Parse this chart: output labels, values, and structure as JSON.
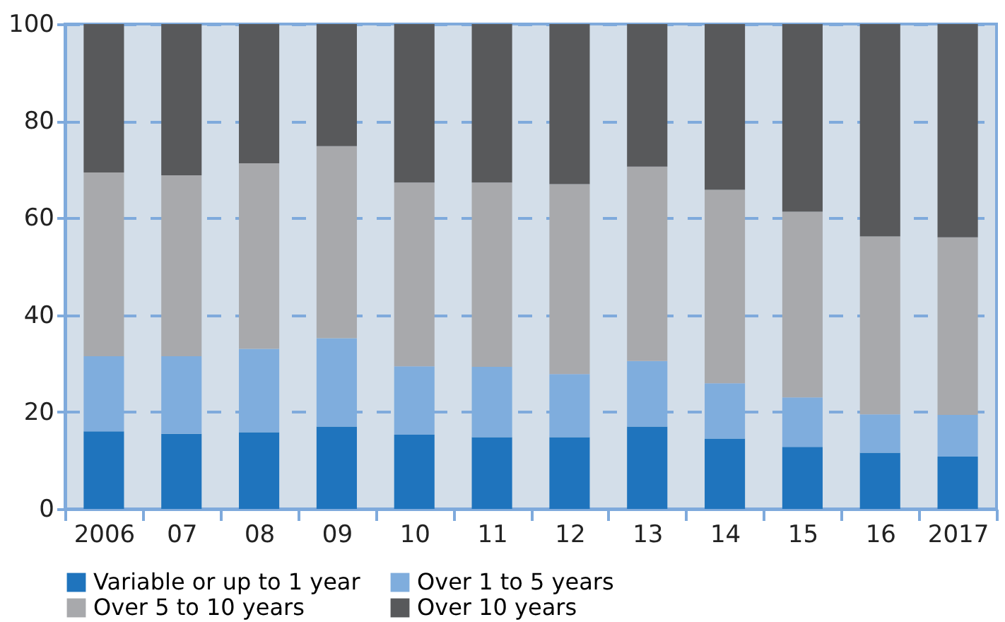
{
  "chart_data": {
    "type": "bar",
    "stacked": true,
    "categories": [
      "2006",
      "07",
      "08",
      "09",
      "10",
      "11",
      "12",
      "13",
      "14",
      "15",
      "16",
      "2017"
    ],
    "series": [
      {
        "name": "Variable or up to 1 year",
        "color": "#1f74bd",
        "values": [
          16,
          15.5,
          15.8,
          17,
          15.3,
          14.8,
          14.8,
          17,
          14.5,
          12.8,
          11.6,
          10.8
        ]
      },
      {
        "name": "Over 1 to 5 years",
        "color": "#7faddd",
        "values": [
          15.5,
          16,
          17.2,
          18.2,
          14.1,
          14.5,
          13,
          13.5,
          11.4,
          10.2,
          7.9,
          8.6
        ]
      },
      {
        "name": "Over 5 to 10 years",
        "color": "#a8a9ac",
        "values": [
          37.9,
          37.3,
          38.3,
          39.6,
          37.9,
          38,
          39.2,
          40.1,
          39.9,
          38.3,
          36.7,
          36.6
        ]
      },
      {
        "name": "Over 10 years",
        "color": "#58595b",
        "values": [
          30.6,
          31.2,
          28.7,
          25.2,
          32.7,
          32.7,
          33,
          29.4,
          34.2,
          38.7,
          43.8,
          44
        ]
      }
    ],
    "ylim": [
      0,
      100
    ],
    "yticks": [
      0,
      20,
      40,
      60,
      80,
      100
    ],
    "grid": "y",
    "legend": "bottom"
  }
}
